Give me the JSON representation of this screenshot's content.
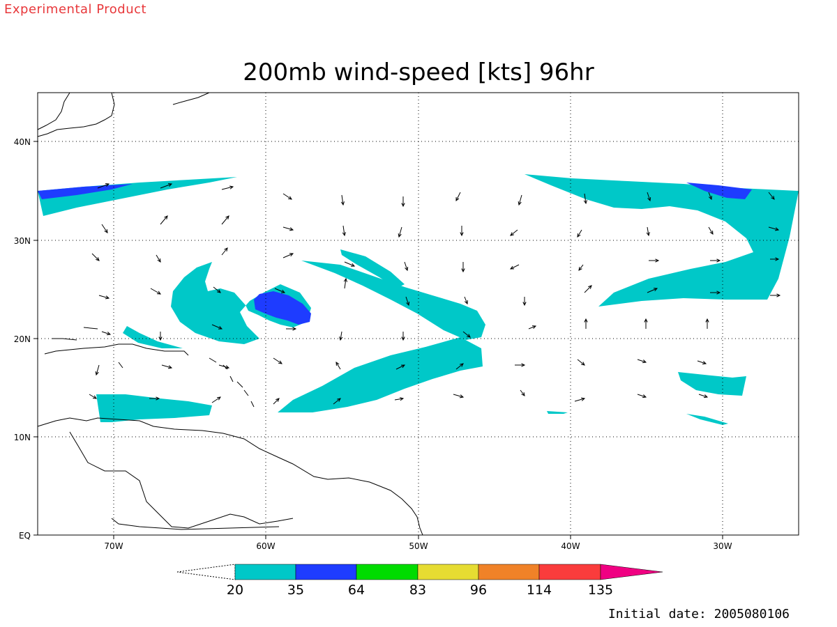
{
  "header": {
    "experimental_label": "Experimental Product"
  },
  "title": "200mb wind-speed [kts] 96hr",
  "axes": {
    "lon_labels": [
      "70W",
      "60W",
      "50W",
      "40W",
      "30W"
    ],
    "lat_labels": [
      "40N",
      "30N",
      "20N",
      "10N",
      "EQ"
    ]
  },
  "colorbar": {
    "thresholds": [
      "20",
      "35",
      "64",
      "83",
      "96",
      "114",
      "135"
    ],
    "colors": [
      "#00c8c8",
      "#1e3cff",
      "#00dc00",
      "#e6dc32",
      "#f08228",
      "#fa3c3c",
      "#f00082"
    ]
  },
  "footer": {
    "initial_date": "Initial date: 2005080106"
  },
  "colors": {
    "cyan": "#00c8c8",
    "blue": "#1e3cff",
    "experimental_text": "#e8383b"
  }
}
